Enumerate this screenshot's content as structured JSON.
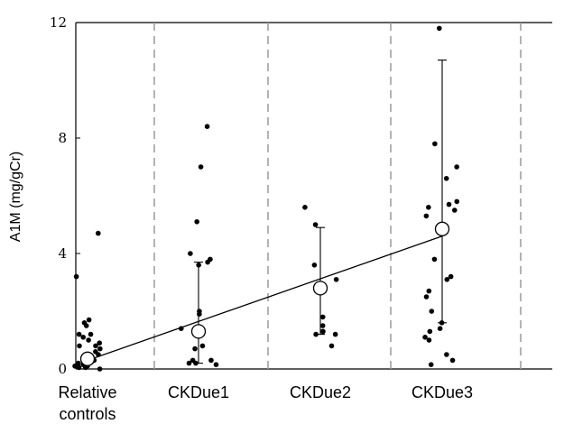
{
  "chart_data": {
    "type": "scatter",
    "ylabel": "A1M (mg/gCr)",
    "ylim": [
      0,
      12
    ],
    "yticks": [
      0,
      4,
      8,
      12
    ],
    "categories": [
      "Relative controls",
      "CKDue1",
      "CKDue2",
      "CKDue3"
    ],
    "category_label_lines": [
      [
        "Relative",
        "controls"
      ],
      [
        "CKDue1"
      ],
      [
        "CKDue2"
      ],
      [
        "CKDue3"
      ]
    ],
    "grid": "dashed vertical separators between groups",
    "points": [
      [
        4.7,
        3.2,
        1.7,
        1.6,
        1.5,
        1.2,
        1.2,
        1.1,
        1.0,
        0.9,
        0.8,
        0.8,
        0.7,
        0.6,
        0.5,
        0.5,
        0.4,
        0.4,
        0.35,
        0.3,
        0.3,
        0.25,
        0.2,
        0.2,
        0.15,
        0.1,
        0.1,
        0.05,
        0.05,
        0.0
      ],
      [
        8.4,
        7.0,
        5.1,
        4.0,
        3.8,
        3.7,
        3.6,
        2.0,
        1.9,
        1.4,
        1.3,
        0.8,
        0.7,
        0.3,
        0.3,
        0.2,
        0.2,
        0.15
      ],
      [
        5.6,
        5.0,
        3.6,
        3.1,
        2.8,
        1.8,
        1.5,
        1.3,
        1.3,
        1.2,
        1.2,
        0.8
      ],
      [
        11.8,
        7.8,
        7.0,
        6.6,
        5.8,
        5.7,
        5.6,
        5.5,
        5.3,
        3.8,
        3.2,
        3.1,
        2.7,
        2.5,
        2.0,
        1.6,
        1.4,
        1.3,
        1.1,
        1.0,
        0.5,
        0.3,
        0.15
      ]
    ],
    "means": [
      0.35,
      1.3,
      2.8,
      4.85
    ],
    "error_bars": [
      [
        0.3,
        0.3
      ],
      [
        0.2,
        3.7
      ],
      [
        1.2,
        4.9
      ],
      [
        1.6,
        10.7
      ]
    ],
    "trend_line": {
      "from_value": 0.3,
      "to_value": 4.6
    }
  }
}
